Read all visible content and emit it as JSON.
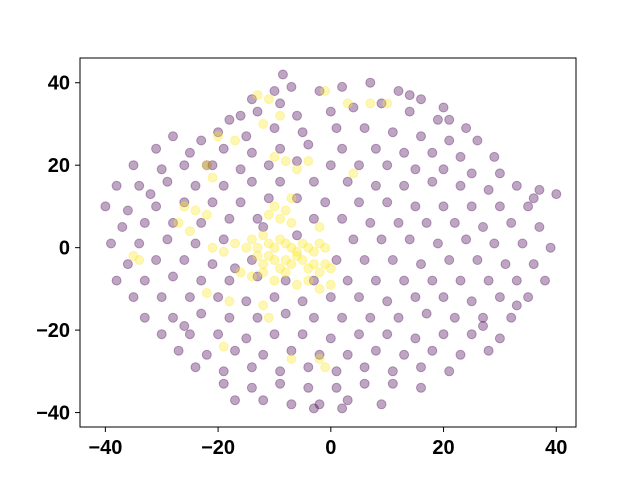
{
  "chart_data": {
    "type": "scatter",
    "title": "",
    "xlabel": "",
    "ylabel": "",
    "xlim": [
      -44.5,
      43.5
    ],
    "ylim": [
      -43.5,
      46
    ],
    "grid": false,
    "legend": "none",
    "x_ticks": [
      -40,
      -20,
      0,
      20,
      40
    ],
    "y_ticks": [
      -40,
      -20,
      0,
      20,
      40
    ],
    "x_tick_labels": [
      "−40",
      "−20",
      "0",
      "20",
      "40"
    ],
    "y_tick_labels": [
      "−40",
      "−20",
      "0",
      "20",
      "40"
    ],
    "colors": {
      "class_0": "#440154",
      "class_1": "#fde725",
      "alpha": 0.35
    },
    "series": [
      {
        "color": "#440154",
        "points": [
          [
            -8.5,
            42
          ],
          [
            -10,
            38
          ],
          [
            -7,
            39
          ],
          [
            -14,
            36
          ],
          [
            -2,
            38
          ],
          [
            2,
            39
          ],
          [
            7,
            40
          ],
          [
            12,
            38
          ],
          [
            16,
            36
          ],
          [
            20,
            34
          ],
          [
            -18,
            31
          ],
          [
            -13,
            33
          ],
          [
            -6,
            32
          ],
          [
            0,
            33
          ],
          [
            4,
            34
          ],
          [
            9,
            35
          ],
          [
            14,
            33
          ],
          [
            19,
            31
          ],
          [
            24,
            29
          ],
          [
            -23,
            26
          ],
          [
            -28,
            27
          ],
          [
            -20,
            28
          ],
          [
            -15,
            27
          ],
          [
            -10,
            29
          ],
          [
            -5,
            28
          ],
          [
            1,
            29
          ],
          [
            6,
            29
          ],
          [
            11,
            28
          ],
          [
            16,
            27
          ],
          [
            21,
            26
          ],
          [
            26,
            26
          ],
          [
            -31,
            24
          ],
          [
            -25,
            23
          ],
          [
            -19,
            24
          ],
          [
            -14,
            23
          ],
          [
            -9,
            24
          ],
          [
            -4,
            25
          ],
          [
            2,
            24
          ],
          [
            8,
            24
          ],
          [
            13,
            23
          ],
          [
            18,
            23
          ],
          [
            23,
            22
          ],
          [
            29,
            22
          ],
          [
            -35,
            20
          ],
          [
            -30,
            19
          ],
          [
            -26,
            20
          ],
          [
            -21,
            20
          ],
          [
            -16,
            19
          ],
          [
            -11,
            20
          ],
          [
            -6,
            21
          ],
          [
            0,
            20
          ],
          [
            5,
            20
          ],
          [
            10,
            20
          ],
          [
            15,
            19
          ],
          [
            20,
            19
          ],
          [
            25,
            18
          ],
          [
            30,
            18
          ],
          [
            -38,
            15
          ],
          [
            -34,
            15
          ],
          [
            -29,
            16
          ],
          [
            -24,
            15
          ],
          [
            -19,
            15
          ],
          [
            -14,
            16
          ],
          [
            -9,
            16
          ],
          [
            -3,
            16
          ],
          [
            3,
            16
          ],
          [
            8,
            15
          ],
          [
            13,
            15
          ],
          [
            18,
            16
          ],
          [
            23,
            15
          ],
          [
            28,
            14
          ],
          [
            33,
            15
          ],
          [
            37,
            14
          ],
          [
            40,
            13
          ],
          [
            -40,
            10
          ],
          [
            -36,
            9
          ],
          [
            -31,
            10
          ],
          [
            -26,
            11
          ],
          [
            -21,
            11
          ],
          [
            -16,
            11
          ],
          [
            -11,
            12
          ],
          [
            -6,
            12
          ],
          [
            -1,
            11
          ],
          [
            5,
            11
          ],
          [
            10,
            11
          ],
          [
            15,
            10
          ],
          [
            20,
            10
          ],
          [
            25,
            10
          ],
          [
            30,
            10
          ],
          [
            35,
            10
          ],
          [
            -37,
            5
          ],
          [
            -33,
            6
          ],
          [
            -28,
            6
          ],
          [
            -23,
            6
          ],
          [
            -18,
            7
          ],
          [
            -13,
            7
          ],
          [
            -3,
            7
          ],
          [
            2,
            7
          ],
          [
            7,
            6
          ],
          [
            12,
            6
          ],
          [
            17,
            6
          ],
          [
            22,
            6
          ],
          [
            27,
            5
          ],
          [
            32,
            6
          ],
          [
            37,
            5
          ],
          [
            -39,
            1
          ],
          [
            -34,
            1
          ],
          [
            -29,
            2
          ],
          [
            -24,
            1
          ],
          [
            -19,
            2
          ],
          [
            4,
            2
          ],
          [
            9,
            2
          ],
          [
            14,
            2
          ],
          [
            19,
            1
          ],
          [
            24,
            2
          ],
          [
            29,
            1
          ],
          [
            34,
            1
          ],
          [
            39,
            0
          ],
          [
            -36,
            -4
          ],
          [
            -31,
            -3
          ],
          [
            -26,
            -3
          ],
          [
            -21,
            -4
          ],
          [
            -14,
            -3
          ],
          [
            1,
            -3
          ],
          [
            6,
            -3
          ],
          [
            11,
            -3
          ],
          [
            16,
            -4
          ],
          [
            21,
            -3
          ],
          [
            26,
            -3
          ],
          [
            31,
            -4
          ],
          [
            36,
            -4
          ],
          [
            -38,
            -8
          ],
          [
            -33,
            -8
          ],
          [
            -28,
            -7
          ],
          [
            -23,
            -8
          ],
          [
            -18,
            -8
          ],
          [
            -13,
            -7
          ],
          [
            -8,
            -8
          ],
          [
            -3,
            -8
          ],
          [
            3,
            -8
          ],
          [
            8,
            -8
          ],
          [
            13,
            -8
          ],
          [
            18,
            -8
          ],
          [
            23,
            -8
          ],
          [
            28,
            -8
          ],
          [
            33,
            -8
          ],
          [
            38,
            -8
          ],
          [
            -35,
            -12
          ],
          [
            -30,
            -12
          ],
          [
            -25,
            -12
          ],
          [
            -20,
            -12
          ],
          [
            -15,
            -13
          ],
          [
            -10,
            -12
          ],
          [
            -5,
            -13
          ],
          [
            0,
            -12
          ],
          [
            5,
            -12
          ],
          [
            10,
            -13
          ],
          [
            15,
            -12
          ],
          [
            20,
            -12
          ],
          [
            25,
            -13
          ],
          [
            30,
            -12
          ],
          [
            35,
            -12
          ],
          [
            -33,
            -17
          ],
          [
            -28,
            -17
          ],
          [
            -23,
            -16
          ],
          [
            -18,
            -17
          ],
          [
            -13,
            -17
          ],
          [
            -8,
            -16
          ],
          [
            -3,
            -17
          ],
          [
            2,
            -17
          ],
          [
            7,
            -17
          ],
          [
            12,
            -17
          ],
          [
            17,
            -16
          ],
          [
            22,
            -17
          ],
          [
            27,
            -17
          ],
          [
            32,
            -17
          ],
          [
            -30,
            -21
          ],
          [
            -25,
            -21
          ],
          [
            -20,
            -21
          ],
          [
            -15,
            -22
          ],
          [
            -10,
            -21
          ],
          [
            -5,
            -21
          ],
          [
            0,
            -22
          ],
          [
            5,
            -21
          ],
          [
            10,
            -21
          ],
          [
            15,
            -22
          ],
          [
            20,
            -21
          ],
          [
            25,
            -21
          ],
          [
            30,
            -22
          ],
          [
            -27,
            -25
          ],
          [
            -22,
            -26
          ],
          [
            -17,
            -25
          ],
          [
            -12,
            -26
          ],
          [
            -7,
            -25
          ],
          [
            -2,
            -26
          ],
          [
            3,
            -26
          ],
          [
            8,
            -25
          ],
          [
            13,
            -26
          ],
          [
            18,
            -25
          ],
          [
            23,
            -26
          ],
          [
            28,
            -25
          ],
          [
            -24,
            -29
          ],
          [
            -19,
            -30
          ],
          [
            -14,
            -29
          ],
          [
            -9,
            -30
          ],
          [
            -4,
            -29
          ],
          [
            1,
            -30
          ],
          [
            6,
            -29
          ],
          [
            11,
            -30
          ],
          [
            16,
            -29
          ],
          [
            21,
            -30
          ],
          [
            -19,
            -33
          ],
          [
            -14,
            -34
          ],
          [
            -9,
            -33
          ],
          [
            -4,
            -34
          ],
          [
            1,
            -34
          ],
          [
            6,
            -33
          ],
          [
            11,
            -33
          ],
          [
            16,
            -34
          ],
          [
            -17,
            -37
          ],
          [
            -12,
            -37
          ],
          [
            -7,
            -38
          ],
          [
            -2,
            -38
          ],
          [
            3,
            -37
          ],
          [
            9,
            -38
          ],
          [
            -3,
            -39
          ],
          [
            2,
            -39
          ],
          [
            -22,
            20
          ],
          [
            -12,
            5
          ],
          [
            -6,
            3
          ],
          [
            -17,
            -5
          ],
          [
            -9,
            35
          ],
          [
            14,
            37
          ],
          [
            -26,
            -19
          ],
          [
            27,
            -19
          ],
          [
            33,
            -14
          ],
          [
            -32,
            13
          ],
          [
            36,
            12
          ],
          [
            -16,
            32
          ],
          [
            21,
            31
          ]
        ]
      },
      {
        "color": "#fde725",
        "points": [
          [
            -13,
            37
          ],
          [
            -11,
            36
          ],
          [
            -9,
            32
          ],
          [
            -12,
            30
          ],
          [
            -1,
            38
          ],
          [
            3,
            35
          ],
          [
            7,
            35
          ],
          [
            10,
            35
          ],
          [
            -20,
            27
          ],
          [
            -17,
            26
          ],
          [
            -22,
            20
          ],
          [
            -21,
            17
          ],
          [
            -10,
            22
          ],
          [
            -8,
            21
          ],
          [
            -4,
            21
          ],
          [
            -6,
            19
          ],
          [
            4,
            18
          ],
          [
            -26,
            10
          ],
          [
            -24,
            9
          ],
          [
            -22,
            8
          ],
          [
            -27,
            6
          ],
          [
            -25,
            4
          ],
          [
            -11,
            8
          ],
          [
            -9,
            7
          ],
          [
            -8,
            9
          ],
          [
            -7,
            6
          ],
          [
            -2,
            5
          ],
          [
            -21,
            0
          ],
          [
            -19,
            -1
          ],
          [
            -17,
            1
          ],
          [
            -15,
            0
          ],
          [
            -14,
            2
          ],
          [
            -13,
            0
          ],
          [
            -12,
            3
          ],
          [
            -11,
            1
          ],
          [
            -10,
            0
          ],
          [
            -9,
            2
          ],
          [
            -8,
            1
          ],
          [
            -7,
            0
          ],
          [
            -6,
            -1
          ],
          [
            -5,
            1
          ],
          [
            -4,
            0
          ],
          [
            -3,
            -1
          ],
          [
            -2,
            1
          ],
          [
            -1,
            0
          ],
          [
            -13,
            -2
          ],
          [
            -12,
            -4
          ],
          [
            -11,
            -2
          ],
          [
            -10,
            -3
          ],
          [
            -9,
            -5
          ],
          [
            -8,
            -3
          ],
          [
            -7,
            -4
          ],
          [
            -6,
            -2
          ],
          [
            -5,
            -3
          ],
          [
            -4,
            -5
          ],
          [
            -3,
            -4
          ],
          [
            -2,
            -6
          ],
          [
            -1,
            -4
          ],
          [
            0,
            -5
          ],
          [
            -16,
            -6
          ],
          [
            -14,
            -7
          ],
          [
            -12,
            -6
          ],
          [
            -10,
            -8
          ],
          [
            -8,
            -6
          ],
          [
            -6,
            -9
          ],
          [
            -4,
            -8
          ],
          [
            -2,
            -10
          ],
          [
            0,
            -9
          ],
          [
            -12,
            -14
          ],
          [
            -11,
            -17
          ],
          [
            -22,
            -11
          ],
          [
            -18,
            -13
          ],
          [
            -19,
            -24
          ],
          [
            -7,
            -27
          ],
          [
            -2,
            -27
          ],
          [
            -1,
            -29
          ],
          [
            -35,
            -2
          ],
          [
            -34,
            -3
          ],
          [
            -10,
            10
          ],
          [
            -7,
            12
          ]
        ]
      }
    ]
  }
}
